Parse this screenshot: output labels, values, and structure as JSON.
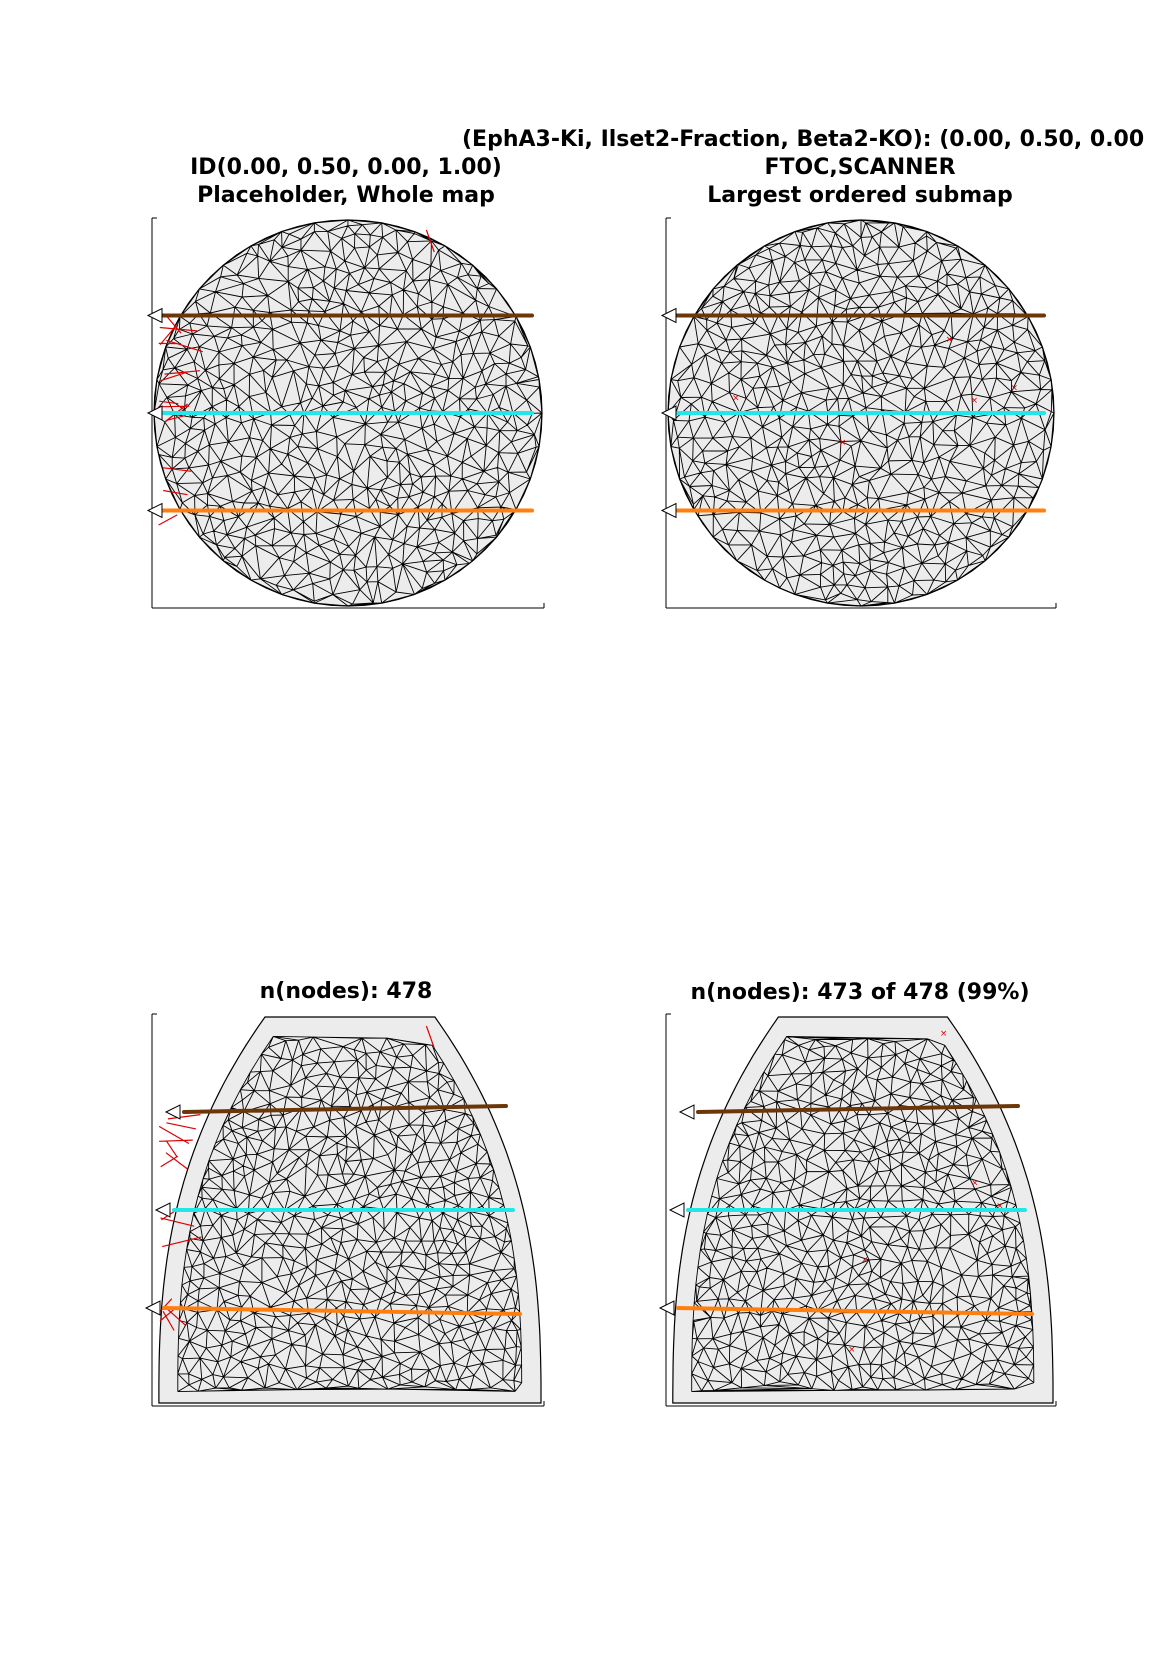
{
  "figure": {
    "title": "(EphA3-Ki, Ilset2-Fraction, Beta2-KO): (0.00, 0.50, 0.00"
  },
  "panels": [
    {
      "id": "top-left",
      "title_lines": [
        "ID(0.00, 0.50, 0.00, 1.00)",
        "Placeholder, Whole map"
      ],
      "shape": "disc",
      "nodes_total": 478,
      "nodes_shown": 478,
      "misordered_markers": 0
    },
    {
      "id": "top-right",
      "title_lines": [
        "FTOC,SCANNER",
        "Largest ordered submap"
      ],
      "shape": "disc",
      "nodes_total": 478,
      "nodes_shown": 473,
      "misordered_markers": 5
    },
    {
      "id": "bottom-left",
      "title_lines": [
        "n(nodes): 478"
      ],
      "shape": "dome",
      "nodes_total": 478,
      "nodes_shown": 478,
      "misordered_markers": 0
    },
    {
      "id": "bottom-right",
      "title_lines": [
        "n(nodes): 473 of 478 (99%)"
      ],
      "shape": "dome",
      "nodes_total": 478,
      "nodes_shown": 473,
      "misordered_markers": 5
    }
  ],
  "colors": {
    "mesh": "#000000",
    "crossing_edges": "#e00000",
    "tract_top": "#6b3608",
    "tract_middle": "#22e6ea",
    "tract_bottom": "#ff7f0e",
    "background_fill": "#ececec"
  }
}
